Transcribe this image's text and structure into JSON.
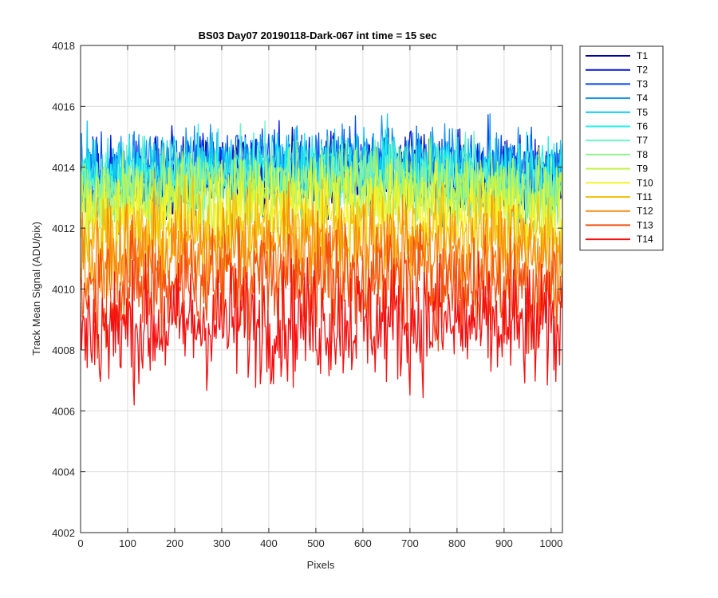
{
  "chart_data": {
    "type": "line",
    "title": "BS03 Day07 20190118-Dark-067 int time = 15 sec",
    "xlabel": "Pixels",
    "ylabel": "Track Mean Signal (ADU/pix)",
    "xlim": [
      0,
      1024
    ],
    "ylim": [
      4002,
      4018
    ],
    "xticks": [
      0,
      100,
      200,
      300,
      400,
      500,
      600,
      700,
      800,
      900,
      1000
    ],
    "yticks": [
      4002,
      4004,
      4006,
      4008,
      4010,
      4012,
      4014,
      4016,
      4018
    ],
    "grid": true,
    "legend_position": "outside-top-right",
    "series": [
      {
        "name": "T1",
        "color": "#0000a0",
        "mean": 4013.4,
        "noise": 0.9
      },
      {
        "name": "T2",
        "color": "#0010d8",
        "mean": 4013.6,
        "noise": 0.9
      },
      {
        "name": "T3",
        "color": "#0048f0",
        "mean": 4013.7,
        "noise": 0.9
      },
      {
        "name": "T4",
        "color": "#1a90ee",
        "mean": 4013.8,
        "noise": 0.9
      },
      {
        "name": "T5",
        "color": "#12c8f2",
        "mean": 4013.7,
        "noise": 0.9
      },
      {
        "name": "T6",
        "color": "#20f0ec",
        "mean": 4013.5,
        "noise": 0.9
      },
      {
        "name": "T7",
        "color": "#70f2c8",
        "mean": 4013.3,
        "noise": 0.9
      },
      {
        "name": "T8",
        "color": "#90f090",
        "mean": 4013.1,
        "noise": 0.9
      },
      {
        "name": "T9",
        "color": "#c4f448",
        "mean": 4012.8,
        "noise": 1.0
      },
      {
        "name": "T10",
        "color": "#f6f42a",
        "mean": 4012.3,
        "noise": 1.0
      },
      {
        "name": "T11",
        "color": "#f4c010",
        "mean": 4011.6,
        "noise": 1.1
      },
      {
        "name": "T12",
        "color": "#f88a12",
        "mean": 4010.9,
        "noise": 1.2
      },
      {
        "name": "T13",
        "color": "#f45010",
        "mean": 4010.0,
        "noise": 1.3
      },
      {
        "name": "T14",
        "color": "#f41010",
        "mean": 4008.6,
        "noise": 1.4
      }
    ]
  }
}
